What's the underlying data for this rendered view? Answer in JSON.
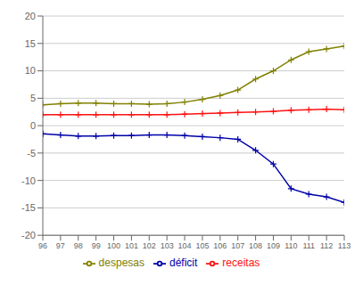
{
  "chart_data": {
    "type": "line",
    "x": [
      96,
      97,
      98,
      99,
      100,
      101,
      102,
      103,
      104,
      105,
      106,
      107,
      108,
      109,
      110,
      111,
      112,
      113
    ],
    "series": [
      {
        "name": "receitas",
        "color": "#ff1111",
        "values": [
          2.0,
          2.0,
          2.0,
          2.0,
          2.0,
          2.0,
          2.0,
          2.0,
          2.1,
          2.2,
          2.3,
          2.4,
          2.5,
          2.6,
          2.8,
          2.9,
          3.0,
          2.9
        ]
      },
      {
        "name": "despesas",
        "color": "#808000",
        "values": [
          3.8,
          4.0,
          4.1,
          4.1,
          4.0,
          4.0,
          3.9,
          4.0,
          4.3,
          4.8,
          5.5,
          6.5,
          8.5,
          10.0,
          12.0,
          13.5,
          14.0,
          14.5
        ]
      },
      {
        "name": "déficit",
        "color": "#0000aa",
        "values": [
          -1.5,
          -1.7,
          -1.9,
          -1.9,
          -1.8,
          -1.8,
          -1.7,
          -1.7,
          -1.8,
          -2.0,
          -2.2,
          -2.5,
          -4.5,
          -7.0,
          -11.5,
          -12.5,
          -13.0,
          -14.0
        ]
      }
    ],
    "xlim": [
      96,
      113
    ],
    "xticks": [
      96,
      97,
      98,
      99,
      100,
      101,
      102,
      103,
      104,
      105,
      106,
      107,
      108,
      109,
      110,
      111,
      112,
      113
    ],
    "ylim": [
      -20,
      20
    ],
    "yticks": [
      -20,
      -15,
      -10,
      -5,
      0,
      5,
      10,
      15,
      20
    ],
    "grid": true,
    "legend": "bottom",
    "marker": "plus"
  }
}
